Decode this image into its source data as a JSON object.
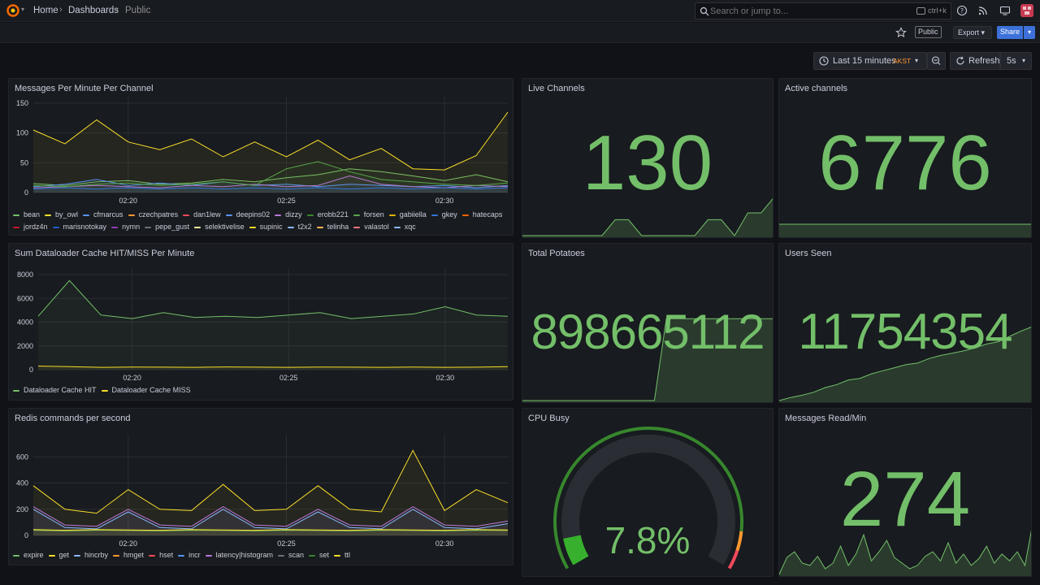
{
  "breadcrumb": {
    "home": "Home",
    "dashboards": "Dashboards",
    "current": "Public"
  },
  "search": {
    "placeholder": "Search or jump to...",
    "shortcut": "ctrl+k"
  },
  "topbar_icons": [
    "help-icon",
    "rss-icon",
    "tv-icon",
    "avatar-icon"
  ],
  "toolbar": {
    "public_label": "Public",
    "export_label": "Export",
    "share_label": "Share"
  },
  "time_controls": {
    "range": "Last 15 minutes",
    "timezone": "AKST",
    "refresh_label": "Refresh",
    "interval": "5s"
  },
  "colors": {
    "accent_green": "#73bf69",
    "panel_bg": "#181b1f",
    "page_bg": "#111217",
    "primary_blue": "#3d71d9",
    "tz_orange": "#ff9830"
  },
  "panels": {
    "messages_per_minute": {
      "title": "Messages Per Minute Per Channel",
      "legend": [
        {
          "name": "bean",
          "color": "#73bf69"
        },
        {
          "name": "by_owl",
          "color": "#fade2a"
        },
        {
          "name": "cfmarcus",
          "color": "#5794f2"
        },
        {
          "name": "czechpatres",
          "color": "#ff9830"
        },
        {
          "name": "dan1lew",
          "color": "#f2495c"
        },
        {
          "name": "deepins02",
          "color": "#5794f2"
        },
        {
          "name": "dizzy",
          "color": "#b877d9"
        },
        {
          "name": "erobb221",
          "color": "#37872d"
        },
        {
          "name": "forsen",
          "color": "#56a64b"
        },
        {
          "name": "gabiiella",
          "color": "#e0b400"
        },
        {
          "name": "gkey",
          "color": "#3274d9"
        },
        {
          "name": "hatecaps",
          "color": "#fa6400"
        },
        {
          "name": "jordz4n",
          "color": "#c4162a"
        },
        {
          "name": "marisnotokay",
          "color": "#1f60c4"
        },
        {
          "name": "nymn",
          "color": "#8f3bb8"
        },
        {
          "name": "pepe_gust",
          "color": "#6e7077"
        },
        {
          "name": "selektivelise",
          "color": "#fff899"
        },
        {
          "name": "supinic",
          "color": "#fade2a"
        },
        {
          "name": "t2x2",
          "color": "#8ab8ff"
        },
        {
          "name": "telinha",
          "color": "#ffb357"
        },
        {
          "name": "valastol",
          "color": "#ff7383"
        },
        {
          "name": "xqc",
          "color": "#8ab8ff"
        }
      ]
    },
    "live_channels": {
      "title": "Live Channels",
      "value": "130"
    },
    "active_channels": {
      "title": "Active channels",
      "value": "6776"
    },
    "dataloader": {
      "title": "Sum Dataloader Cache HIT/MISS Per Minute",
      "legend": [
        {
          "name": "Dataloader Cache HIT",
          "color": "#73bf69"
        },
        {
          "name": "Dataloader Cache MISS",
          "color": "#fade2a"
        }
      ]
    },
    "total_potatoes": {
      "title": "Total Potatoes",
      "value": "898665112"
    },
    "users_seen": {
      "title": "Users Seen",
      "value": "11754354"
    },
    "redis": {
      "title": "Redis commands per second",
      "legend": [
        {
          "name": "expire",
          "color": "#73bf69"
        },
        {
          "name": "get",
          "color": "#fade2a"
        },
        {
          "name": "hincrby",
          "color": "#8ab8ff"
        },
        {
          "name": "hmget",
          "color": "#ff9830"
        },
        {
          "name": "hset",
          "color": "#f2495c"
        },
        {
          "name": "incr",
          "color": "#5794f2"
        },
        {
          "name": "latency|histogram",
          "color": "#b877d9"
        },
        {
          "name": "scan",
          "color": "#6e7077"
        },
        {
          "name": "set",
          "color": "#37872d"
        },
        {
          "name": "ttl",
          "color": "#fade2a"
        }
      ]
    },
    "cpu_busy": {
      "title": "CPU Busy",
      "value": "7.8%",
      "percent": 7.8
    },
    "messages_read": {
      "title": "Messages Read/Min",
      "value": "274"
    }
  },
  "chart_data": [
    {
      "type": "line",
      "title": "Messages Per Minute Per Channel",
      "x": [
        "02:17",
        "02:18",
        "02:19",
        "02:20",
        "02:21",
        "02:22",
        "02:23",
        "02:24",
        "02:25",
        "02:26",
        "02:27",
        "02:28",
        "02:29",
        "02:30",
        "02:31",
        "02:32"
      ],
      "x_ticks": [
        "02:20",
        "02:25",
        "02:30"
      ],
      "y_ticks": [
        0,
        50,
        100,
        150
      ],
      "ylim": [
        0,
        150
      ],
      "series": [
        {
          "name": "bean",
          "color": "#73bf69",
          "values": [
            15,
            12,
            18,
            20,
            14,
            16,
            22,
            18,
            25,
            30,
            40,
            35,
            28,
            20,
            30,
            18
          ]
        },
        {
          "name": "supinic",
          "color": "#fade2a",
          "values": [
            105,
            82,
            122,
            85,
            72,
            90,
            60,
            85,
            60,
            88,
            55,
            74,
            40,
            38,
            62,
            135
          ]
        },
        {
          "name": "cfmarcus",
          "color": "#5794f2",
          "values": [
            10,
            14,
            22,
            12,
            16,
            12,
            18,
            12,
            14,
            10,
            14,
            12,
            10,
            12,
            8,
            12
          ]
        },
        {
          "name": "dizzy",
          "color": "#b877d9",
          "values": [
            8,
            10,
            12,
            10,
            8,
            12,
            10,
            14,
            10,
            12,
            28,
            14,
            10,
            8,
            12,
            10
          ]
        },
        {
          "name": "forsen",
          "color": "#56a64b",
          "values": [
            12,
            10,
            14,
            16,
            12,
            14,
            18,
            12,
            40,
            52,
            35,
            22,
            18,
            14,
            12,
            16
          ]
        },
        {
          "name": "gkey",
          "color": "#3274d9",
          "values": [
            6,
            8,
            6,
            8,
            6,
            8,
            6,
            8,
            6,
            8,
            6,
            8,
            6,
            8,
            6,
            8
          ]
        }
      ]
    },
    {
      "type": "line",
      "title": "Sum Dataloader Cache HIT/MISS Per Minute",
      "x": [
        "02:17",
        "02:18",
        "02:19",
        "02:20",
        "02:21",
        "02:22",
        "02:23",
        "02:24",
        "02:25",
        "02:26",
        "02:27",
        "02:28",
        "02:29",
        "02:30",
        "02:31",
        "02:32"
      ],
      "x_ticks": [
        "02:20",
        "02:25",
        "02:30"
      ],
      "y_ticks": [
        0,
        2000,
        4000,
        6000,
        8000
      ],
      "ylim": [
        0,
        8000
      ],
      "series": [
        {
          "name": "Dataloader Cache HIT",
          "color": "#73bf69",
          "values": [
            4500,
            7500,
            4600,
            4300,
            4800,
            4400,
            4500,
            4400,
            4600,
            4800,
            4300,
            4500,
            4700,
            5300,
            4600,
            4500
          ]
        },
        {
          "name": "Dataloader Cache MISS",
          "color": "#fade2a",
          "values": [
            300,
            250,
            200,
            220,
            210,
            200,
            230,
            210,
            200,
            220,
            210,
            200,
            220,
            200,
            210,
            250
          ]
        }
      ]
    },
    {
      "type": "line",
      "title": "Redis commands per second",
      "x": [
        "02:17",
        "02:18",
        "02:19",
        "02:20",
        "02:21",
        "02:22",
        "02:23",
        "02:24",
        "02:25",
        "02:26",
        "02:27",
        "02:28",
        "02:29",
        "02:30",
        "02:31",
        "02:32"
      ],
      "x_ticks": [
        "02:20",
        "02:25",
        "02:30"
      ],
      "y_ticks": [
        0,
        200,
        400,
        600
      ],
      "ylim": [
        0,
        720
      ],
      "series": [
        {
          "name": "get",
          "color": "#fade2a",
          "values": [
            380,
            200,
            170,
            350,
            200,
            190,
            390,
            190,
            200,
            380,
            200,
            180,
            650,
            190,
            350,
            250
          ]
        },
        {
          "name": "latency|histogram",
          "color": "#b877d9",
          "values": [
            220,
            80,
            70,
            200,
            80,
            70,
            220,
            80,
            70,
            200,
            80,
            70,
            220,
            80,
            70,
            110
          ]
        },
        {
          "name": "hincrby",
          "color": "#8ab8ff",
          "values": [
            200,
            60,
            50,
            180,
            60,
            50,
            200,
            60,
            50,
            180,
            60,
            50,
            200,
            60,
            50,
            90
          ]
        },
        {
          "name": "expire",
          "color": "#73bf69",
          "values": [
            40,
            35,
            40,
            38,
            35,
            40,
            38,
            35,
            40,
            38,
            35,
            40,
            38,
            35,
            40,
            38
          ]
        },
        {
          "name": "ttl",
          "color": "#fade2a",
          "values": [
            45,
            40,
            45,
            42,
            40,
            45,
            42,
            40,
            45,
            42,
            40,
            45,
            42,
            40,
            45,
            42
          ]
        }
      ]
    },
    {
      "type": "area",
      "title": "Live Channels",
      "values": [
        116,
        116,
        116,
        116,
        116,
        116,
        116,
        123,
        123,
        116,
        116,
        116,
        116,
        116,
        123,
        123,
        116,
        126,
        126,
        133
      ]
    },
    {
      "type": "area",
      "title": "Active channels",
      "values": [
        6776,
        6776,
        6776,
        6776,
        6776,
        6776,
        6776,
        6776,
        6776,
        6776
      ]
    },
    {
      "type": "area",
      "title": "Total Potatoes",
      "values": [
        0,
        0,
        0,
        0,
        0,
        0,
        0,
        0,
        0,
        0,
        0,
        0,
        1,
        1,
        1,
        1,
        1,
        1,
        1,
        1,
        1,
        1
      ]
    },
    {
      "type": "area",
      "title": "Users Seen",
      "values": [
        1,
        5,
        8,
        12,
        18,
        22,
        28,
        30,
        36,
        40,
        44,
        48,
        50,
        56,
        60,
        63,
        66,
        70,
        75,
        78,
        85,
        92,
        98
      ]
    },
    {
      "type": "area",
      "title": "Messages Read/Min",
      "values": [
        10,
        25,
        30,
        20,
        18,
        26,
        15,
        20,
        35,
        18,
        28,
        45,
        22,
        30,
        40,
        25,
        20,
        15,
        18,
        26,
        30,
        22,
        38,
        20,
        28,
        18,
        24,
        35,
        20,
        28,
        22,
        30,
        18,
        55
      ]
    }
  ]
}
